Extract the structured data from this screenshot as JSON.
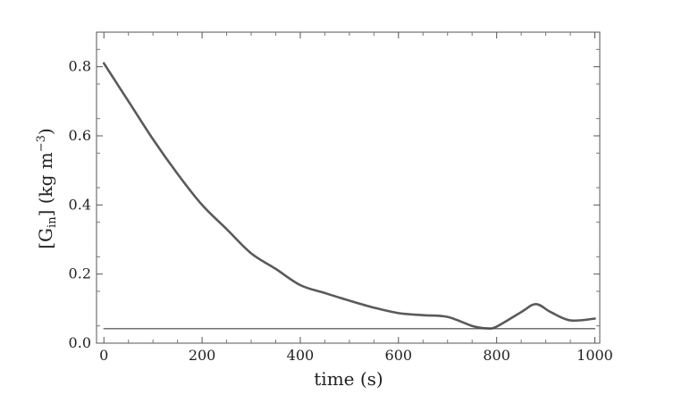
{
  "chart_data": {
    "type": "line",
    "xlabel": "time (s)",
    "ylabel_parts": {
      "open": "[G",
      "sub": "in",
      "mid": "] (kg m",
      "sup": "−3",
      "close": ")"
    },
    "xlim": [
      -15,
      1010
    ],
    "ylim": [
      0,
      0.9
    ],
    "x_ticks": [
      0,
      200,
      400,
      600,
      800,
      1000
    ],
    "y_ticks": [
      0.0,
      0.2,
      0.4,
      0.6,
      0.8
    ],
    "y_tick_labels": [
      "0.0",
      "0.2",
      "0.4",
      "0.6",
      "0.8"
    ],
    "grid": false,
    "series": [
      {
        "color": "#5a5a5a",
        "x": [
          0,
          50,
          100,
          150,
          200,
          250,
          300,
          350,
          400,
          450,
          500,
          550,
          600,
          650,
          700,
          750,
          780,
          800,
          850,
          880,
          910,
          950,
          1000
        ],
        "y": [
          0.81,
          0.7,
          0.59,
          0.49,
          0.4,
          0.33,
          0.26,
          0.215,
          0.168,
          0.145,
          0.123,
          0.103,
          0.087,
          0.081,
          0.076,
          0.05,
          0.043,
          0.048,
          0.09,
          0.113,
          0.09,
          0.066,
          0.071
        ]
      },
      {
        "color": "#444444",
        "x": [
          0,
          1000
        ],
        "y": [
          0.042,
          0.042
        ]
      }
    ]
  }
}
